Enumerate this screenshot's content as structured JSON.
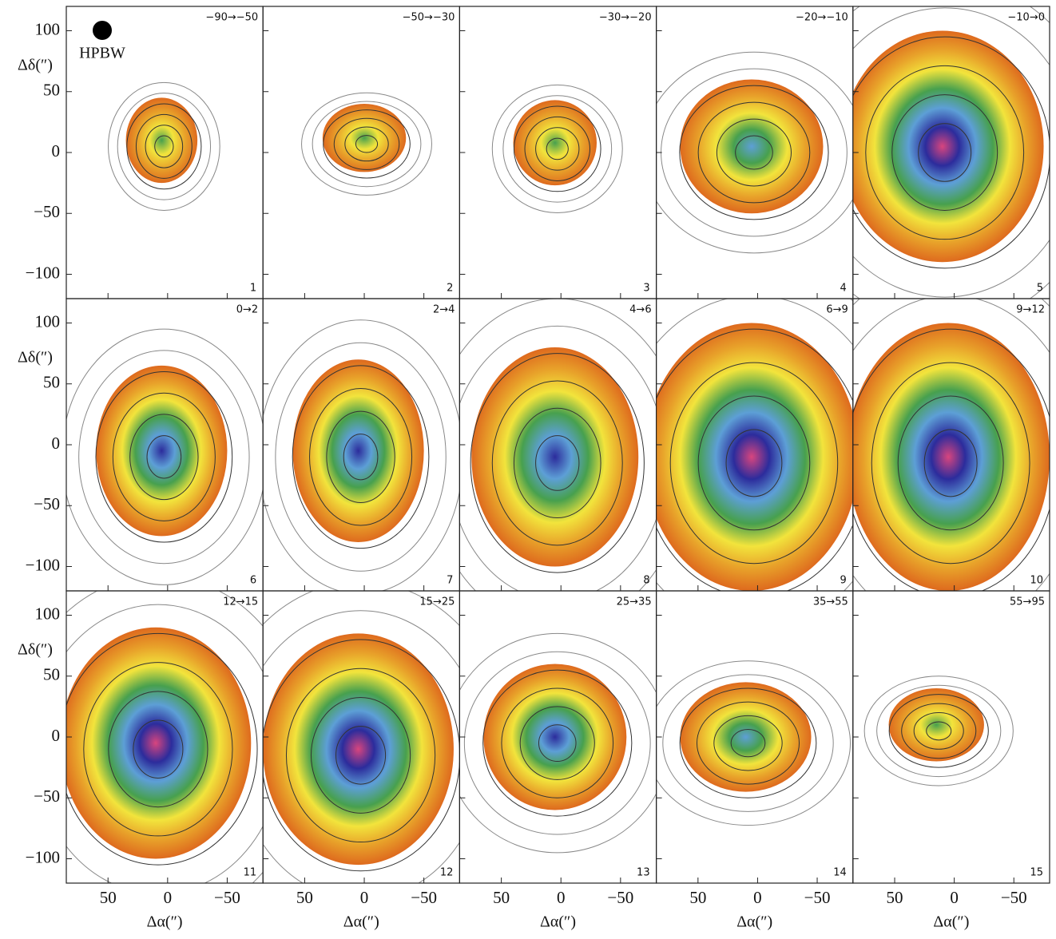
{
  "figure": {
    "beam_label": "HPBW",
    "x_label": "Δα(″)",
    "y_label": "Δδ(″)",
    "xlim": [
      85,
      -80
    ],
    "ylim": [
      -120,
      120
    ],
    "xticks": [
      50,
      0,
      {
        "value": -50,
        "label": "−50"
      }
    ],
    "yticks": [
      100,
      50,
      0,
      {
        "value": -50,
        "label": "−50"
      },
      {
        "value": -100,
        "label": "−100"
      }
    ],
    "panels": [
      {
        "velocity": "−90→−50",
        "number": "1"
      },
      {
        "velocity": "−50→−30",
        "number": "2"
      },
      {
        "velocity": "−30→−20",
        "number": "3"
      },
      {
        "velocity": "−20→−10",
        "number": "4"
      },
      {
        "velocity": "−10→0",
        "number": "5"
      },
      {
        "velocity": "0→2",
        "number": "6"
      },
      {
        "velocity": "2→4",
        "number": "7"
      },
      {
        "velocity": "4→6",
        "number": "8"
      },
      {
        "velocity": "6→9",
        "number": "9"
      },
      {
        "velocity": "9→12",
        "number": "10"
      },
      {
        "velocity": "12→15",
        "number": "11"
      },
      {
        "velocity": "15→25",
        "number": "12"
      },
      {
        "velocity": "25→35",
        "number": "13"
      },
      {
        "velocity": "35→55",
        "number": "14"
      },
      {
        "velocity": "55→95",
        "number": "15"
      }
    ]
  }
}
